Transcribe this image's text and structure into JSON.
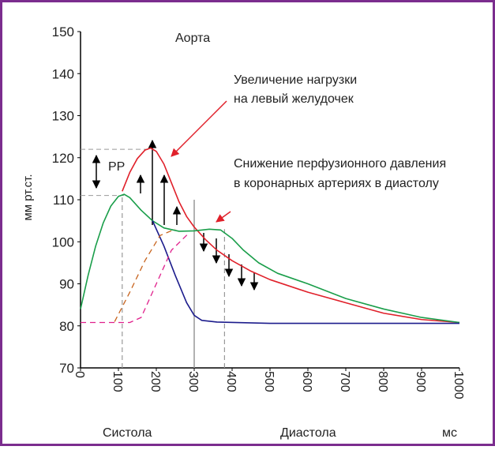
{
  "chart_data": {
    "type": "line",
    "title": "Аорта",
    "y_label": "мм рт.ст.",
    "x_unit": "мс",
    "phases": [
      "Систола",
      "Диастола"
    ],
    "annotations": [
      "Увеличение нагрузки",
      "на левый желудочек",
      "Снижение перфузионного давления",
      "в коронарных артериях в диастолу",
      "PP"
    ],
    "xlim": [
      0,
      1000
    ],
    "ylim": [
      70,
      150
    ],
    "xticks": [
      0,
      100,
      200,
      300,
      400,
      500,
      600,
      700,
      800,
      900,
      1000
    ],
    "yticks": [
      70,
      80,
      90,
      100,
      110,
      120,
      130,
      140,
      150
    ],
    "series": [
      {
        "color": "#e0202a",
        "style": "solid",
        "x": [
          110,
          130,
          150,
          170,
          185,
          200,
          220,
          240,
          260,
          280,
          300,
          330,
          360,
          400,
          450,
          500,
          600,
          700,
          800,
          900,
          1000
        ],
        "values": [
          112,
          116.5,
          119.8,
          121.8,
          122.3,
          121.5,
          118.5,
          114,
          109.5,
          106,
          103.5,
          100.5,
          98,
          95.5,
          93,
          91,
          88,
          85.5,
          83,
          81.5,
          80.8
        ]
      },
      {
        "color": "#1a9e4a",
        "style": "solid",
        "x": [
          0,
          20,
          40,
          60,
          80,
          100,
          115,
          130,
          160,
          190,
          220,
          260,
          300,
          340,
          370,
          400,
          430,
          470,
          520,
          600,
          700,
          800,
          900,
          1000
        ],
        "values": [
          84,
          92,
          99,
          104.5,
          108.5,
          110.8,
          111.3,
          110.5,
          107.5,
          105,
          103.3,
          102.5,
          102.6,
          103,
          102.8,
          100.8,
          98,
          95,
          92.5,
          90,
          86.5,
          84,
          82,
          80.8
        ]
      },
      {
        "color": "#1c1c8c",
        "style": "solid",
        "x": [
          190,
          220,
          250,
          280,
          300,
          320,
          360,
          500,
          1000
        ],
        "values": [
          105,
          99,
          92,
          85.5,
          82.5,
          81.3,
          80.9,
          80.6,
          80.6
        ]
      },
      {
        "color": "#c8641e",
        "style": "dashed",
        "x": [
          90,
          130,
          170,
          210,
          250
        ],
        "values": [
          81,
          88,
          95.5,
          101.5,
          103
        ]
      },
      {
        "color": "#e0208c",
        "style": "dashed",
        "x": [
          0,
          130,
          160,
          200,
          240,
          285
        ],
        "values": [
          80.8,
          80.8,
          82,
          90,
          98,
          102
        ]
      }
    ],
    "hlines": [
      {
        "value": 122,
        "x": [
          0,
          190
        ]
      },
      {
        "value": 111,
        "x": [
          0,
          115
        ]
      }
    ],
    "vlines": [
      {
        "value": 110,
        "y": [
          70,
          111
        ],
        "style": "dashed"
      },
      {
        "value": 300,
        "y": [
          70,
          110
        ],
        "style": "solid"
      },
      {
        "value": 380,
        "y": [
          70,
          103
        ],
        "style": "dashed"
      }
    ],
    "frame_color": "#7b2d8e"
  }
}
